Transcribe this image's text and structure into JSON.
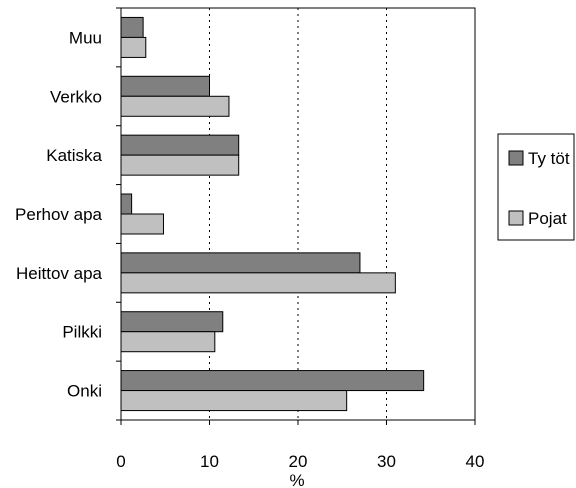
{
  "chart_data": {
    "type": "bar",
    "orientation": "horizontal",
    "categories": [
      "Muu",
      "Verkko",
      "Katiska",
      "Perhov apa",
      "Heittov apa",
      "Pilkki",
      "Onki"
    ],
    "series": [
      {
        "name": "Ty töt",
        "color": "#808080",
        "values": [
          2.5,
          10,
          13.3,
          1.2,
          27,
          11.5,
          34.2
        ]
      },
      {
        "name": "Pojat",
        "color": "#c0c0c0",
        "values": [
          2.8,
          12.2,
          13.3,
          4.8,
          31,
          10.6,
          25.5
        ]
      }
    ],
    "xlim": [
      0,
      40
    ],
    "xticks": [
      0,
      10,
      20,
      30,
      40
    ],
    "xlabel": "%",
    "grid": "vertical dotted",
    "legend_position": "right"
  }
}
